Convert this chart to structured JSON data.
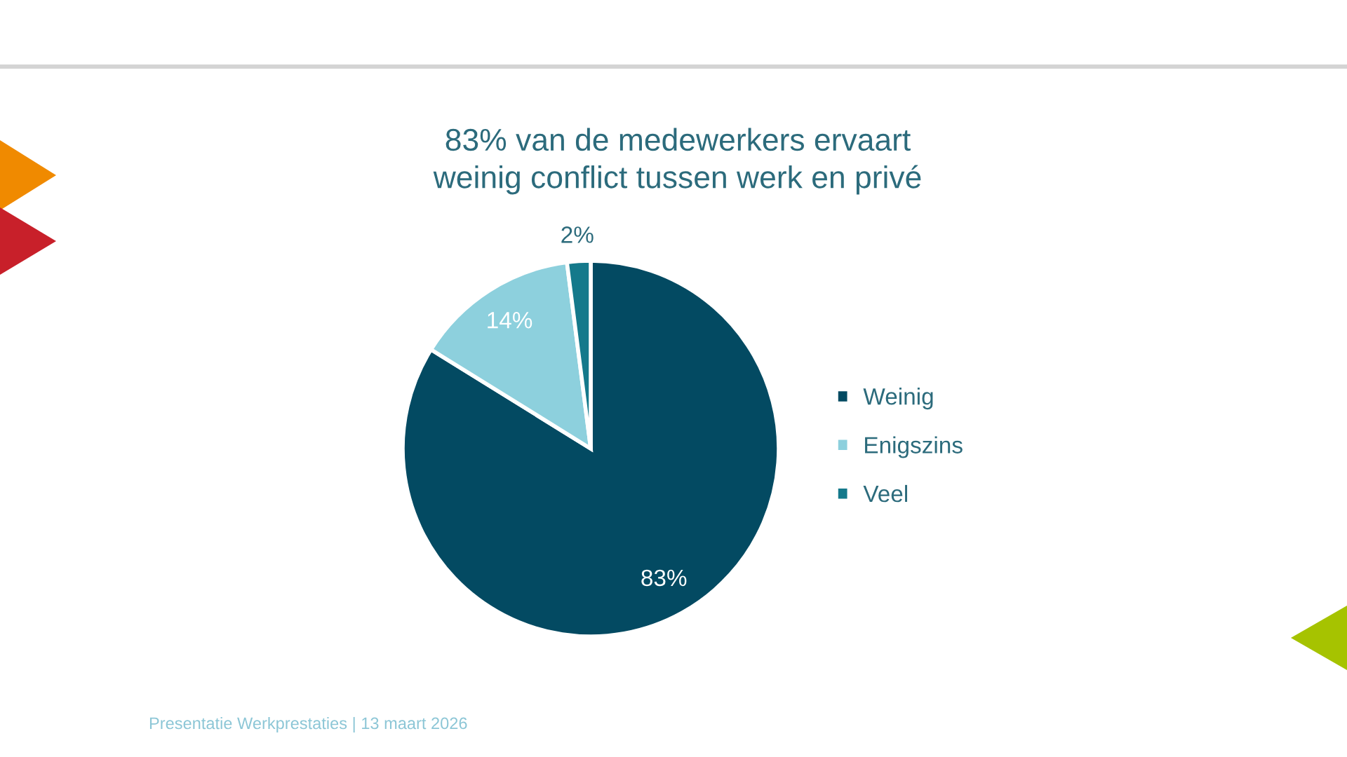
{
  "chart_data": {
    "type": "pie",
    "title": "83% van de medewerkers ervaart\nweinig conflict tussen werk en privé",
    "categories": [
      "Weinig",
      "Enigszins",
      "Veel"
    ],
    "values": [
      83,
      14,
      2
    ],
    "colors": [
      "#034a62",
      "#8dd0dd",
      "#14798b"
    ],
    "value_labels": [
      "83%",
      "14%",
      "2%"
    ],
    "legend": "right",
    "annotations": [
      "Presentatie Werkprestaties | 13 maart 2026"
    ]
  }
}
